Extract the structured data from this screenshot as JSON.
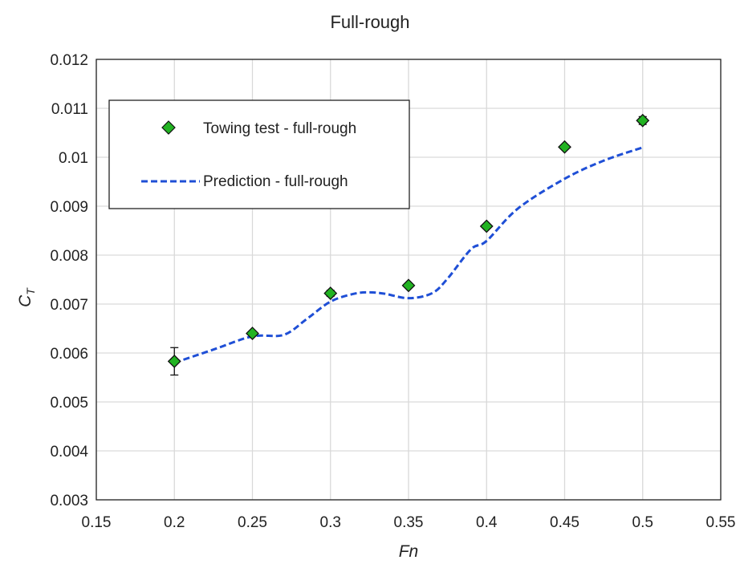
{
  "chart_data": {
    "type": "scatter",
    "title": "Full-rough",
    "xlabel": "Fn",
    "ylabel_main": "C",
    "ylabel_sub": "T",
    "xlim": [
      0.15,
      0.55
    ],
    "ylim": [
      0.003,
      0.012
    ],
    "x_ticks": [
      0.15,
      0.2,
      0.25,
      0.3,
      0.35,
      0.4,
      0.45,
      0.5,
      0.55
    ],
    "x_tick_labels": [
      "0.15",
      "0.2",
      "0.25",
      "0.3",
      "0.35",
      "0.4",
      "0.45",
      "0.5",
      "0.55"
    ],
    "y_ticks": [
      0.003,
      0.004,
      0.005,
      0.006,
      0.007,
      0.008,
      0.009,
      0.01,
      0.011,
      0.012
    ],
    "y_tick_labels": [
      "0.003",
      "0.004",
      "0.005",
      "0.006",
      "0.007",
      "0.008",
      "0.009",
      "0.01",
      "0.011",
      "0.012"
    ],
    "grid": true,
    "legend_position": "top-left",
    "series": [
      {
        "name": "Towing test - full-rough",
        "kind": "markers",
        "marker": "diamond",
        "color": "#22b322",
        "x": [
          0.2,
          0.25,
          0.3,
          0.35,
          0.4,
          0.45,
          0.5
        ],
        "y": [
          0.00583,
          0.0064,
          0.00722,
          0.00738,
          0.00859,
          0.01021,
          0.01075
        ],
        "error": [
          0.00028,
          4e-05,
          6e-05,
          4e-05,
          4e-05,
          4e-05,
          8e-05
        ]
      },
      {
        "name": "Prediction - full-rough",
        "kind": "line",
        "style": "dashed",
        "color": "#1f4fd6",
        "x": [
          0.2,
          0.225,
          0.25,
          0.27,
          0.285,
          0.3,
          0.315,
          0.325,
          0.335,
          0.35,
          0.365,
          0.375,
          0.39,
          0.4,
          0.42,
          0.45,
          0.475,
          0.5
        ],
        "y": [
          0.0058,
          0.00607,
          0.00634,
          0.00637,
          0.0067,
          0.00705,
          0.00721,
          0.00724,
          0.00721,
          0.00712,
          0.00722,
          0.00752,
          0.00812,
          0.00829,
          0.00895,
          0.00956,
          0.00993,
          0.0102
        ]
      }
    ]
  }
}
